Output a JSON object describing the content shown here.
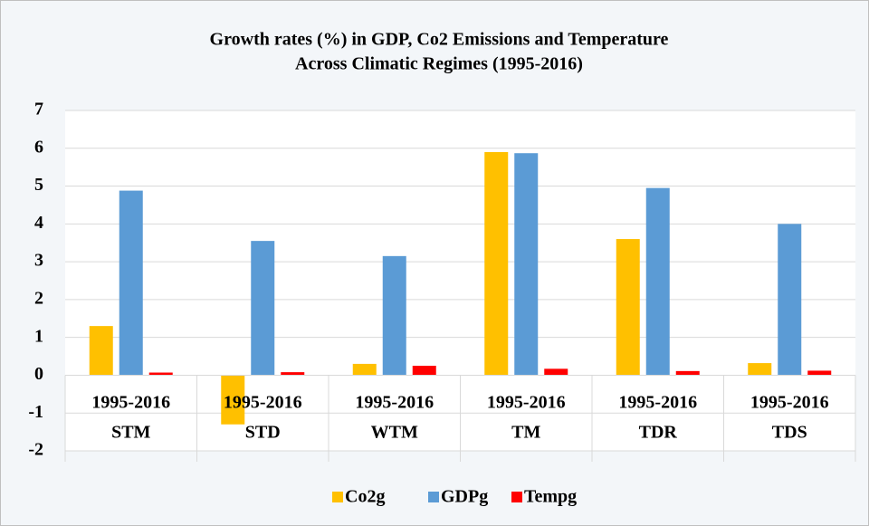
{
  "chart_data": {
    "type": "bar",
    "title": [
      "Growth rates (%) in GDP, Co2 Emissions and Temperature",
      "Across Climatic Regimes (1995-2016)"
    ],
    "categories": [
      "1995-2016",
      "1995-2016",
      "1995-2016",
      "1995-2016",
      "1995-2016",
      "1995-2016"
    ],
    "groups": [
      "STM",
      "STD",
      "WTM",
      "TM",
      "TDR",
      "TDS"
    ],
    "series": [
      {
        "name": "Co2g",
        "color": "#ffc000",
        "values": [
          1.3,
          -1.3,
          0.3,
          5.9,
          3.6,
          0.32
        ]
      },
      {
        "name": "GDPg",
        "color": "#5b9bd5",
        "values": [
          4.88,
          3.55,
          3.15,
          5.87,
          4.95,
          4.0
        ]
      },
      {
        "name": "Tempg",
        "color": "#ff0000",
        "values": [
          0.07,
          0.08,
          0.25,
          0.17,
          0.11,
          0.12
        ]
      }
    ],
    "ylim": [
      -2,
      7
    ],
    "yticks": [
      -2,
      -1,
      0,
      1,
      2,
      3,
      4,
      5,
      6,
      7
    ],
    "grid": true,
    "legend": "bottom"
  }
}
